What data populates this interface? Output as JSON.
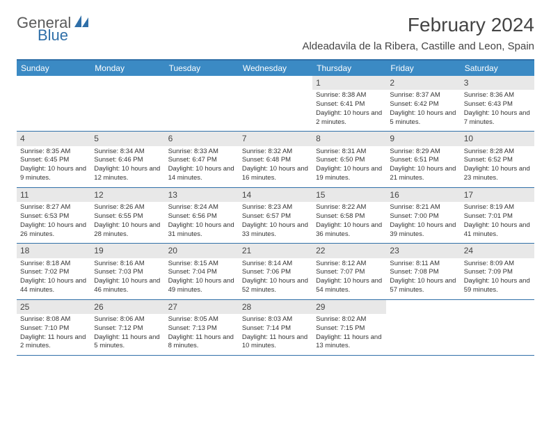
{
  "logo": {
    "line1": "General",
    "line2": "Blue",
    "icon_color": "#2f6fa8"
  },
  "header": {
    "month_title": "February 2024",
    "location": "Aldeadavila de la Ribera, Castille and Leon, Spain"
  },
  "colors": {
    "header_bg": "#3b8ac4",
    "border": "#2f6fa8",
    "daynum_bg": "#e8e8e8"
  },
  "weekdays": [
    "Sunday",
    "Monday",
    "Tuesday",
    "Wednesday",
    "Thursday",
    "Friday",
    "Saturday"
  ],
  "weeks": [
    [
      {
        "n": "",
        "sunrise": "",
        "sunset": "",
        "daylight": ""
      },
      {
        "n": "",
        "sunrise": "",
        "sunset": "",
        "daylight": ""
      },
      {
        "n": "",
        "sunrise": "",
        "sunset": "",
        "daylight": ""
      },
      {
        "n": "",
        "sunrise": "",
        "sunset": "",
        "daylight": ""
      },
      {
        "n": "1",
        "sunrise": "Sunrise: 8:38 AM",
        "sunset": "Sunset: 6:41 PM",
        "daylight": "Daylight: 10 hours and 2 minutes."
      },
      {
        "n": "2",
        "sunrise": "Sunrise: 8:37 AM",
        "sunset": "Sunset: 6:42 PM",
        "daylight": "Daylight: 10 hours and 5 minutes."
      },
      {
        "n": "3",
        "sunrise": "Sunrise: 8:36 AM",
        "sunset": "Sunset: 6:43 PM",
        "daylight": "Daylight: 10 hours and 7 minutes."
      }
    ],
    [
      {
        "n": "4",
        "sunrise": "Sunrise: 8:35 AM",
        "sunset": "Sunset: 6:45 PM",
        "daylight": "Daylight: 10 hours and 9 minutes."
      },
      {
        "n": "5",
        "sunrise": "Sunrise: 8:34 AM",
        "sunset": "Sunset: 6:46 PM",
        "daylight": "Daylight: 10 hours and 12 minutes."
      },
      {
        "n": "6",
        "sunrise": "Sunrise: 8:33 AM",
        "sunset": "Sunset: 6:47 PM",
        "daylight": "Daylight: 10 hours and 14 minutes."
      },
      {
        "n": "7",
        "sunrise": "Sunrise: 8:32 AM",
        "sunset": "Sunset: 6:48 PM",
        "daylight": "Daylight: 10 hours and 16 minutes."
      },
      {
        "n": "8",
        "sunrise": "Sunrise: 8:31 AM",
        "sunset": "Sunset: 6:50 PM",
        "daylight": "Daylight: 10 hours and 19 minutes."
      },
      {
        "n": "9",
        "sunrise": "Sunrise: 8:29 AM",
        "sunset": "Sunset: 6:51 PM",
        "daylight": "Daylight: 10 hours and 21 minutes."
      },
      {
        "n": "10",
        "sunrise": "Sunrise: 8:28 AM",
        "sunset": "Sunset: 6:52 PM",
        "daylight": "Daylight: 10 hours and 23 minutes."
      }
    ],
    [
      {
        "n": "11",
        "sunrise": "Sunrise: 8:27 AM",
        "sunset": "Sunset: 6:53 PM",
        "daylight": "Daylight: 10 hours and 26 minutes."
      },
      {
        "n": "12",
        "sunrise": "Sunrise: 8:26 AM",
        "sunset": "Sunset: 6:55 PM",
        "daylight": "Daylight: 10 hours and 28 minutes."
      },
      {
        "n": "13",
        "sunrise": "Sunrise: 8:24 AM",
        "sunset": "Sunset: 6:56 PM",
        "daylight": "Daylight: 10 hours and 31 minutes."
      },
      {
        "n": "14",
        "sunrise": "Sunrise: 8:23 AM",
        "sunset": "Sunset: 6:57 PM",
        "daylight": "Daylight: 10 hours and 33 minutes."
      },
      {
        "n": "15",
        "sunrise": "Sunrise: 8:22 AM",
        "sunset": "Sunset: 6:58 PM",
        "daylight": "Daylight: 10 hours and 36 minutes."
      },
      {
        "n": "16",
        "sunrise": "Sunrise: 8:21 AM",
        "sunset": "Sunset: 7:00 PM",
        "daylight": "Daylight: 10 hours and 39 minutes."
      },
      {
        "n": "17",
        "sunrise": "Sunrise: 8:19 AM",
        "sunset": "Sunset: 7:01 PM",
        "daylight": "Daylight: 10 hours and 41 minutes."
      }
    ],
    [
      {
        "n": "18",
        "sunrise": "Sunrise: 8:18 AM",
        "sunset": "Sunset: 7:02 PM",
        "daylight": "Daylight: 10 hours and 44 minutes."
      },
      {
        "n": "19",
        "sunrise": "Sunrise: 8:16 AM",
        "sunset": "Sunset: 7:03 PM",
        "daylight": "Daylight: 10 hours and 46 minutes."
      },
      {
        "n": "20",
        "sunrise": "Sunrise: 8:15 AM",
        "sunset": "Sunset: 7:04 PM",
        "daylight": "Daylight: 10 hours and 49 minutes."
      },
      {
        "n": "21",
        "sunrise": "Sunrise: 8:14 AM",
        "sunset": "Sunset: 7:06 PM",
        "daylight": "Daylight: 10 hours and 52 minutes."
      },
      {
        "n": "22",
        "sunrise": "Sunrise: 8:12 AM",
        "sunset": "Sunset: 7:07 PM",
        "daylight": "Daylight: 10 hours and 54 minutes."
      },
      {
        "n": "23",
        "sunrise": "Sunrise: 8:11 AM",
        "sunset": "Sunset: 7:08 PM",
        "daylight": "Daylight: 10 hours and 57 minutes."
      },
      {
        "n": "24",
        "sunrise": "Sunrise: 8:09 AM",
        "sunset": "Sunset: 7:09 PM",
        "daylight": "Daylight: 10 hours and 59 minutes."
      }
    ],
    [
      {
        "n": "25",
        "sunrise": "Sunrise: 8:08 AM",
        "sunset": "Sunset: 7:10 PM",
        "daylight": "Daylight: 11 hours and 2 minutes."
      },
      {
        "n": "26",
        "sunrise": "Sunrise: 8:06 AM",
        "sunset": "Sunset: 7:12 PM",
        "daylight": "Daylight: 11 hours and 5 minutes."
      },
      {
        "n": "27",
        "sunrise": "Sunrise: 8:05 AM",
        "sunset": "Sunset: 7:13 PM",
        "daylight": "Daylight: 11 hours and 8 minutes."
      },
      {
        "n": "28",
        "sunrise": "Sunrise: 8:03 AM",
        "sunset": "Sunset: 7:14 PM",
        "daylight": "Daylight: 11 hours and 10 minutes."
      },
      {
        "n": "29",
        "sunrise": "Sunrise: 8:02 AM",
        "sunset": "Sunset: 7:15 PM",
        "daylight": "Daylight: 11 hours and 13 minutes."
      },
      {
        "n": "",
        "sunrise": "",
        "sunset": "",
        "daylight": ""
      },
      {
        "n": "",
        "sunrise": "",
        "sunset": "",
        "daylight": ""
      }
    ]
  ]
}
